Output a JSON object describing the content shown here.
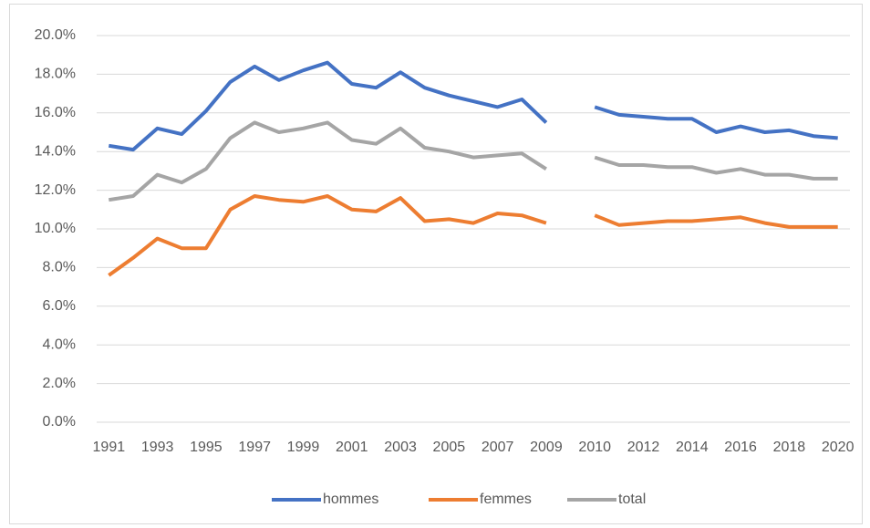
{
  "chart_data": {
    "type": "line",
    "categories": [
      "1991",
      "1992",
      "1993",
      "1994",
      "1995",
      "1996",
      "1997",
      "1998",
      "1999",
      "2000",
      "2001",
      "2002",
      "2003",
      "2004",
      "2005",
      "2006",
      "2007",
      "2008",
      "2009",
      null,
      "2010",
      "2011",
      "2012",
      "2013",
      "2014",
      "2015",
      "2016",
      "2017",
      "2018",
      "2019",
      "2020"
    ],
    "series": [
      {
        "name": "hommes",
        "color": "#4472c4",
        "values": [
          14.3,
          14.1,
          15.2,
          14.9,
          16.1,
          17.6,
          18.4,
          17.7,
          18.2,
          18.6,
          17.5,
          17.3,
          18.1,
          17.3,
          16.9,
          16.6,
          16.3,
          16.7,
          15.5,
          null,
          16.3,
          15.9,
          15.8,
          15.7,
          15.7,
          15.0,
          15.3,
          15.0,
          15.1,
          14.8,
          14.7
        ]
      },
      {
        "name": "femmes",
        "color": "#ed7d31",
        "values": [
          7.6,
          8.5,
          9.5,
          9.0,
          9.0,
          11.0,
          11.7,
          11.5,
          11.4,
          11.7,
          11.0,
          10.9,
          11.6,
          10.4,
          10.5,
          10.3,
          10.8,
          10.7,
          10.3,
          null,
          10.7,
          10.2,
          10.3,
          10.4,
          10.4,
          10.5,
          10.6,
          10.3,
          10.1,
          10.1,
          10.1
        ]
      },
      {
        "name": "total",
        "color": "#a5a5a5",
        "values": [
          11.5,
          11.7,
          12.8,
          12.4,
          13.1,
          14.7,
          15.5,
          15.0,
          15.2,
          15.5,
          14.6,
          14.4,
          15.2,
          14.2,
          14.0,
          13.7,
          13.8,
          13.9,
          13.1,
          null,
          13.7,
          13.3,
          13.3,
          13.2,
          13.2,
          12.9,
          13.1,
          12.8,
          12.8,
          12.6,
          12.6
        ]
      }
    ],
    "ylim": [
      0,
      20
    ],
    "yticks": [
      {
        "value": 0,
        "label": "0.0%"
      },
      {
        "value": 2,
        "label": "2.0%"
      },
      {
        "value": 4,
        "label": "4.0%"
      },
      {
        "value": 6,
        "label": "6.0%"
      },
      {
        "value": 8,
        "label": "8.0%"
      },
      {
        "value": 10,
        "label": "10.0%"
      },
      {
        "value": 12,
        "label": "12.0%"
      },
      {
        "value": 14,
        "label": "14.0%"
      },
      {
        "value": 16,
        "label": "16.0%"
      },
      {
        "value": 18,
        "label": "18.0%"
      },
      {
        "value": 20,
        "label": "20.0%"
      }
    ],
    "grid": true,
    "legend": "bottom"
  }
}
